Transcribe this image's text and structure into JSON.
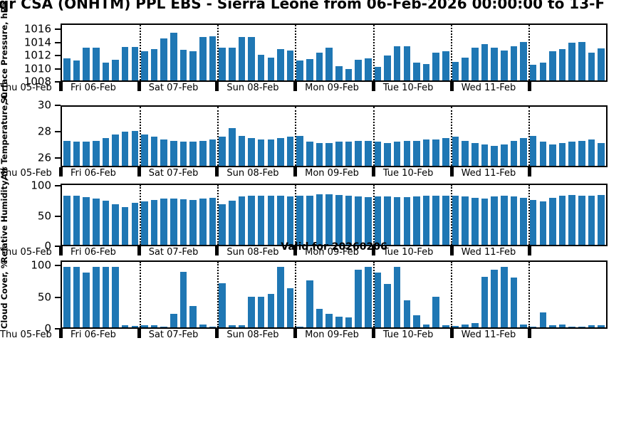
{
  "title": "qr CSA (ONHTM) PPL EBS  - Sierra Leone from 06-Feb-2026 00:00:00 to 13-F",
  "valid_label": "Valid for 20260206",
  "colors": {
    "bar": "#1f77b4",
    "axis": "#000000"
  },
  "x_axis": {
    "left_label": "Thu 05-Feb",
    "day_labels": [
      "Fri 06-Feb",
      "Sat 07-Feb",
      "Sun 08-Feb",
      "Mon 09-Feb",
      "Tue 10-Feb",
      "Wed 11-Feb"
    ],
    "bars_per_day": 8
  },
  "chart_data": [
    {
      "type": "bar",
      "title": "Surface Pressure",
      "ylabel": "Surface Pressure, hPa",
      "ylim": [
        1008,
        1016.9
      ],
      "yticks": [
        1008,
        1010,
        1012,
        1014,
        1016
      ],
      "grid": "dotted-vertical-day-boundaries",
      "values": [
        1011.5,
        1011.2,
        1013.2,
        1013.2,
        1010.8,
        1011.3,
        1013.4,
        1013.4,
        1012.7,
        1013.0,
        1014.7,
        1015.6,
        1012.9,
        1012.7,
        1015.0,
        1015.1,
        1013.2,
        1013.2,
        1015.0,
        1015.0,
        1012.1,
        1011.7,
        1013.0,
        1012.8,
        1011.2,
        1011.4,
        1012.5,
        1013.2,
        1010.3,
        1009.8,
        1011.3,
        1011.5,
        1010.2,
        1012.0,
        1013.5,
        1013.5,
        1010.8,
        1010.6,
        1012.4,
        1012.7,
        1011.0,
        1011.6,
        1013.2,
        1013.8,
        1013.3,
        1012.8,
        1013.5,
        1014.2,
        1010.5,
        1010.8,
        1012.7,
        1013.0,
        1014.0,
        1014.2,
        1012.4,
        1013.1
      ]
    },
    {
      "type": "bar",
      "title": "Air Temperature",
      "ylabel": "Air Temperature, C",
      "ylim": [
        25.3,
        30
      ],
      "yticks": [
        26,
        28,
        30
      ],
      "grid": "dotted-vertical-day-boundaries",
      "values": [
        27.3,
        27.2,
        27.2,
        27.3,
        27.5,
        27.8,
        28.0,
        28.1,
        27.8,
        27.6,
        27.4,
        27.3,
        27.2,
        27.2,
        27.3,
        27.4,
        27.6,
        28.3,
        27.7,
        27.5,
        27.4,
        27.4,
        27.5,
        27.6,
        27.7,
        27.2,
        27.1,
        27.1,
        27.2,
        27.2,
        27.3,
        27.3,
        27.2,
        27.1,
        27.2,
        27.3,
        27.3,
        27.4,
        27.4,
        27.5,
        27.6,
        27.3,
        27.1,
        27.0,
        26.9,
        27.0,
        27.3,
        27.5,
        27.7,
        27.2,
        27.0,
        27.1,
        27.2,
        27.3,
        27.4,
        27.1
      ]
    },
    {
      "type": "bar",
      "title": "Relative Humidity",
      "ylabel": "Relative Humidity, %",
      "ylim": [
        0,
        104
      ],
      "yticks": [
        0,
        50,
        100
      ],
      "grid": "dotted-vertical-day-boundaries",
      "values": [
        85,
        85,
        83,
        80,
        77,
        70,
        66,
        73,
        75,
        78,
        80,
        80,
        79,
        78,
        80,
        82,
        70,
        77,
        84,
        85,
        86,
        86,
        85,
        84,
        85,
        86,
        88,
        88,
        87,
        86,
        84,
        83,
        84,
        84,
        83,
        83,
        84,
        85,
        86,
        86,
        85,
        84,
        82,
        80,
        84,
        85,
        84,
        82,
        78,
        75,
        82,
        86,
        87,
        86,
        85,
        87
      ]
    },
    {
      "type": "bar",
      "title": "Cloud Cover",
      "ylabel": "Cloud Cover, %",
      "ylim": [
        0,
        108
      ],
      "yticks": [
        0,
        50,
        100
      ],
      "grid": "dotted-vertical-day-boundaries",
      "values": [
        100,
        100,
        90,
        100,
        100,
        100,
        3,
        2,
        3,
        4,
        1,
        22,
        92,
        35,
        5,
        1,
        73,
        4,
        3,
        50,
        50,
        55,
        100,
        65,
        1,
        78,
        30,
        22,
        18,
        17,
        95,
        100,
        90,
        72,
        100,
        45,
        20,
        5,
        51,
        3,
        2,
        5,
        7,
        83,
        95,
        100,
        82,
        5,
        1,
        25,
        3,
        5,
        1,
        1,
        3,
        4
      ]
    }
  ]
}
